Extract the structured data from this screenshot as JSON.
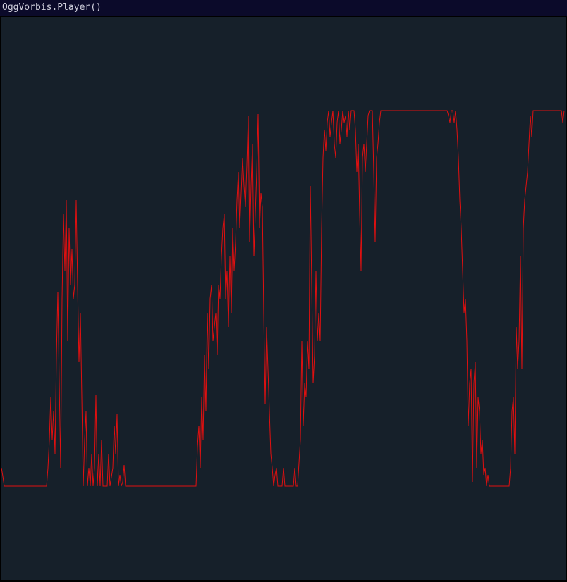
{
  "window": {
    "title": "OggVorbis.Player()"
  },
  "colors": {
    "titlebar": "#0b0a2a",
    "title_text": "#cfcfdc",
    "canvas_bg": "#16202a",
    "trace": "#e01010"
  }
}
